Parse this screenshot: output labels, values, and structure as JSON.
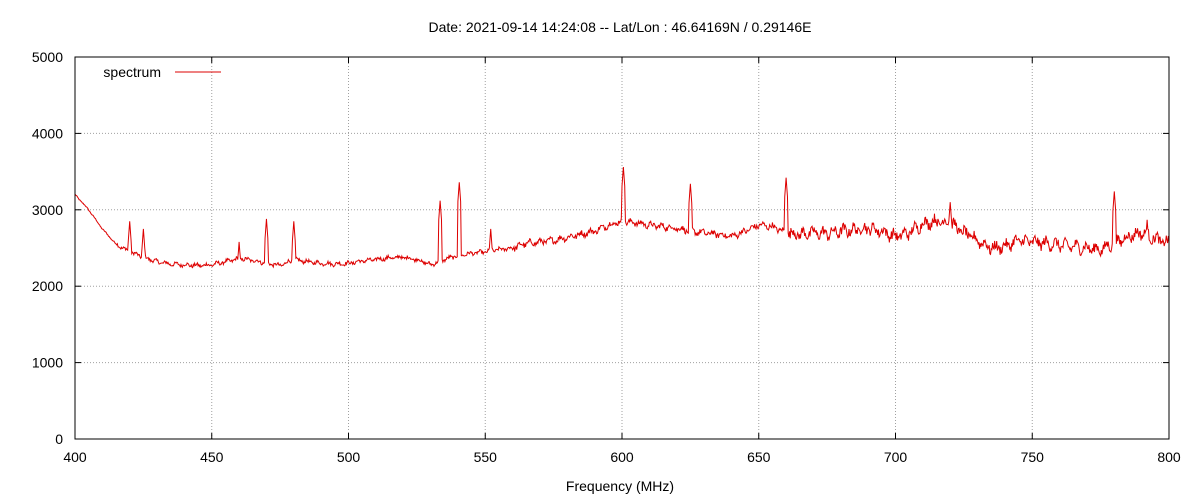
{
  "chart_data": {
    "type": "line",
    "title": "Date: 2021-09-14 14:24:08  --  Lat/Lon : 46.64169N / 0.29146E",
    "xlabel": "Frequency (MHz)",
    "ylabel": "",
    "xlim": [
      400,
      800
    ],
    "ylim": [
      0,
      5000
    ],
    "xticks": [
      400,
      450,
      500,
      550,
      600,
      650,
      700,
      750,
      800
    ],
    "yticks": [
      0,
      1000,
      2000,
      3000,
      4000,
      5000
    ],
    "grid": true,
    "legend_position": "top-left",
    "series": [
      {
        "name": "spectrum",
        "color": "#dd0000",
        "x": [
          400,
          405,
          410,
          415,
          420,
          425,
          430,
          435,
          440,
          445,
          450,
          455,
          460,
          465,
          470,
          475,
          480,
          485,
          490,
          495,
          500,
          505,
          510,
          515,
          520,
          525,
          530,
          535,
          540,
          545,
          550,
          555,
          560,
          565,
          570,
          575,
          580,
          585,
          590,
          595,
          600,
          605,
          610,
          615,
          620,
          625,
          630,
          635,
          640,
          645,
          650,
          655,
          660,
          665,
          670,
          675,
          680,
          685,
          690,
          695,
          700,
          705,
          710,
          715,
          720,
          725,
          730,
          735,
          740,
          745,
          750,
          755,
          760,
          765,
          770,
          775,
          780,
          785,
          790,
          795,
          800
        ],
        "y": [
          3200,
          3000,
          2750,
          2550,
          2450,
          2380,
          2320,
          2290,
          2280,
          2270,
          2280,
          2320,
          2360,
          2340,
          2300,
          2270,
          2350,
          2320,
          2300,
          2290,
          2300,
          2330,
          2350,
          2370,
          2380,
          2350,
          2280,
          2350,
          2400,
          2430,
          2450,
          2480,
          2500,
          2560,
          2580,
          2600,
          2640,
          2680,
          2720,
          2800,
          2850,
          2830,
          2800,
          2780,
          2760,
          2720,
          2700,
          2680,
          2650,
          2720,
          2800,
          2780,
          2700,
          2680,
          2700,
          2690,
          2720,
          2740,
          2760,
          2720,
          2650,
          2700,
          2820,
          2850,
          2830,
          2700,
          2600,
          2500,
          2520,
          2600,
          2580,
          2560,
          2540,
          2520,
          2500,
          2480,
          2560,
          2650,
          2700,
          2620,
          2560
        ]
      }
    ],
    "peaks": [
      {
        "x": 420,
        "y": 2850
      },
      {
        "x": 425,
        "y": 2750
      },
      {
        "x": 470,
        "y": 2880
      },
      {
        "x": 480,
        "y": 2850
      },
      {
        "x": 460,
        "y": 2580
      },
      {
        "x": 533.5,
        "y": 3120
      },
      {
        "x": 540.5,
        "y": 3360
      },
      {
        "x": 552,
        "y": 2750
      },
      {
        "x": 600.5,
        "y": 3560
      },
      {
        "x": 625,
        "y": 3340
      },
      {
        "x": 660,
        "y": 3420
      },
      {
        "x": 720,
        "y": 3100
      },
      {
        "x": 780,
        "y": 3240
      },
      {
        "x": 792,
        "y": 2870
      }
    ]
  }
}
